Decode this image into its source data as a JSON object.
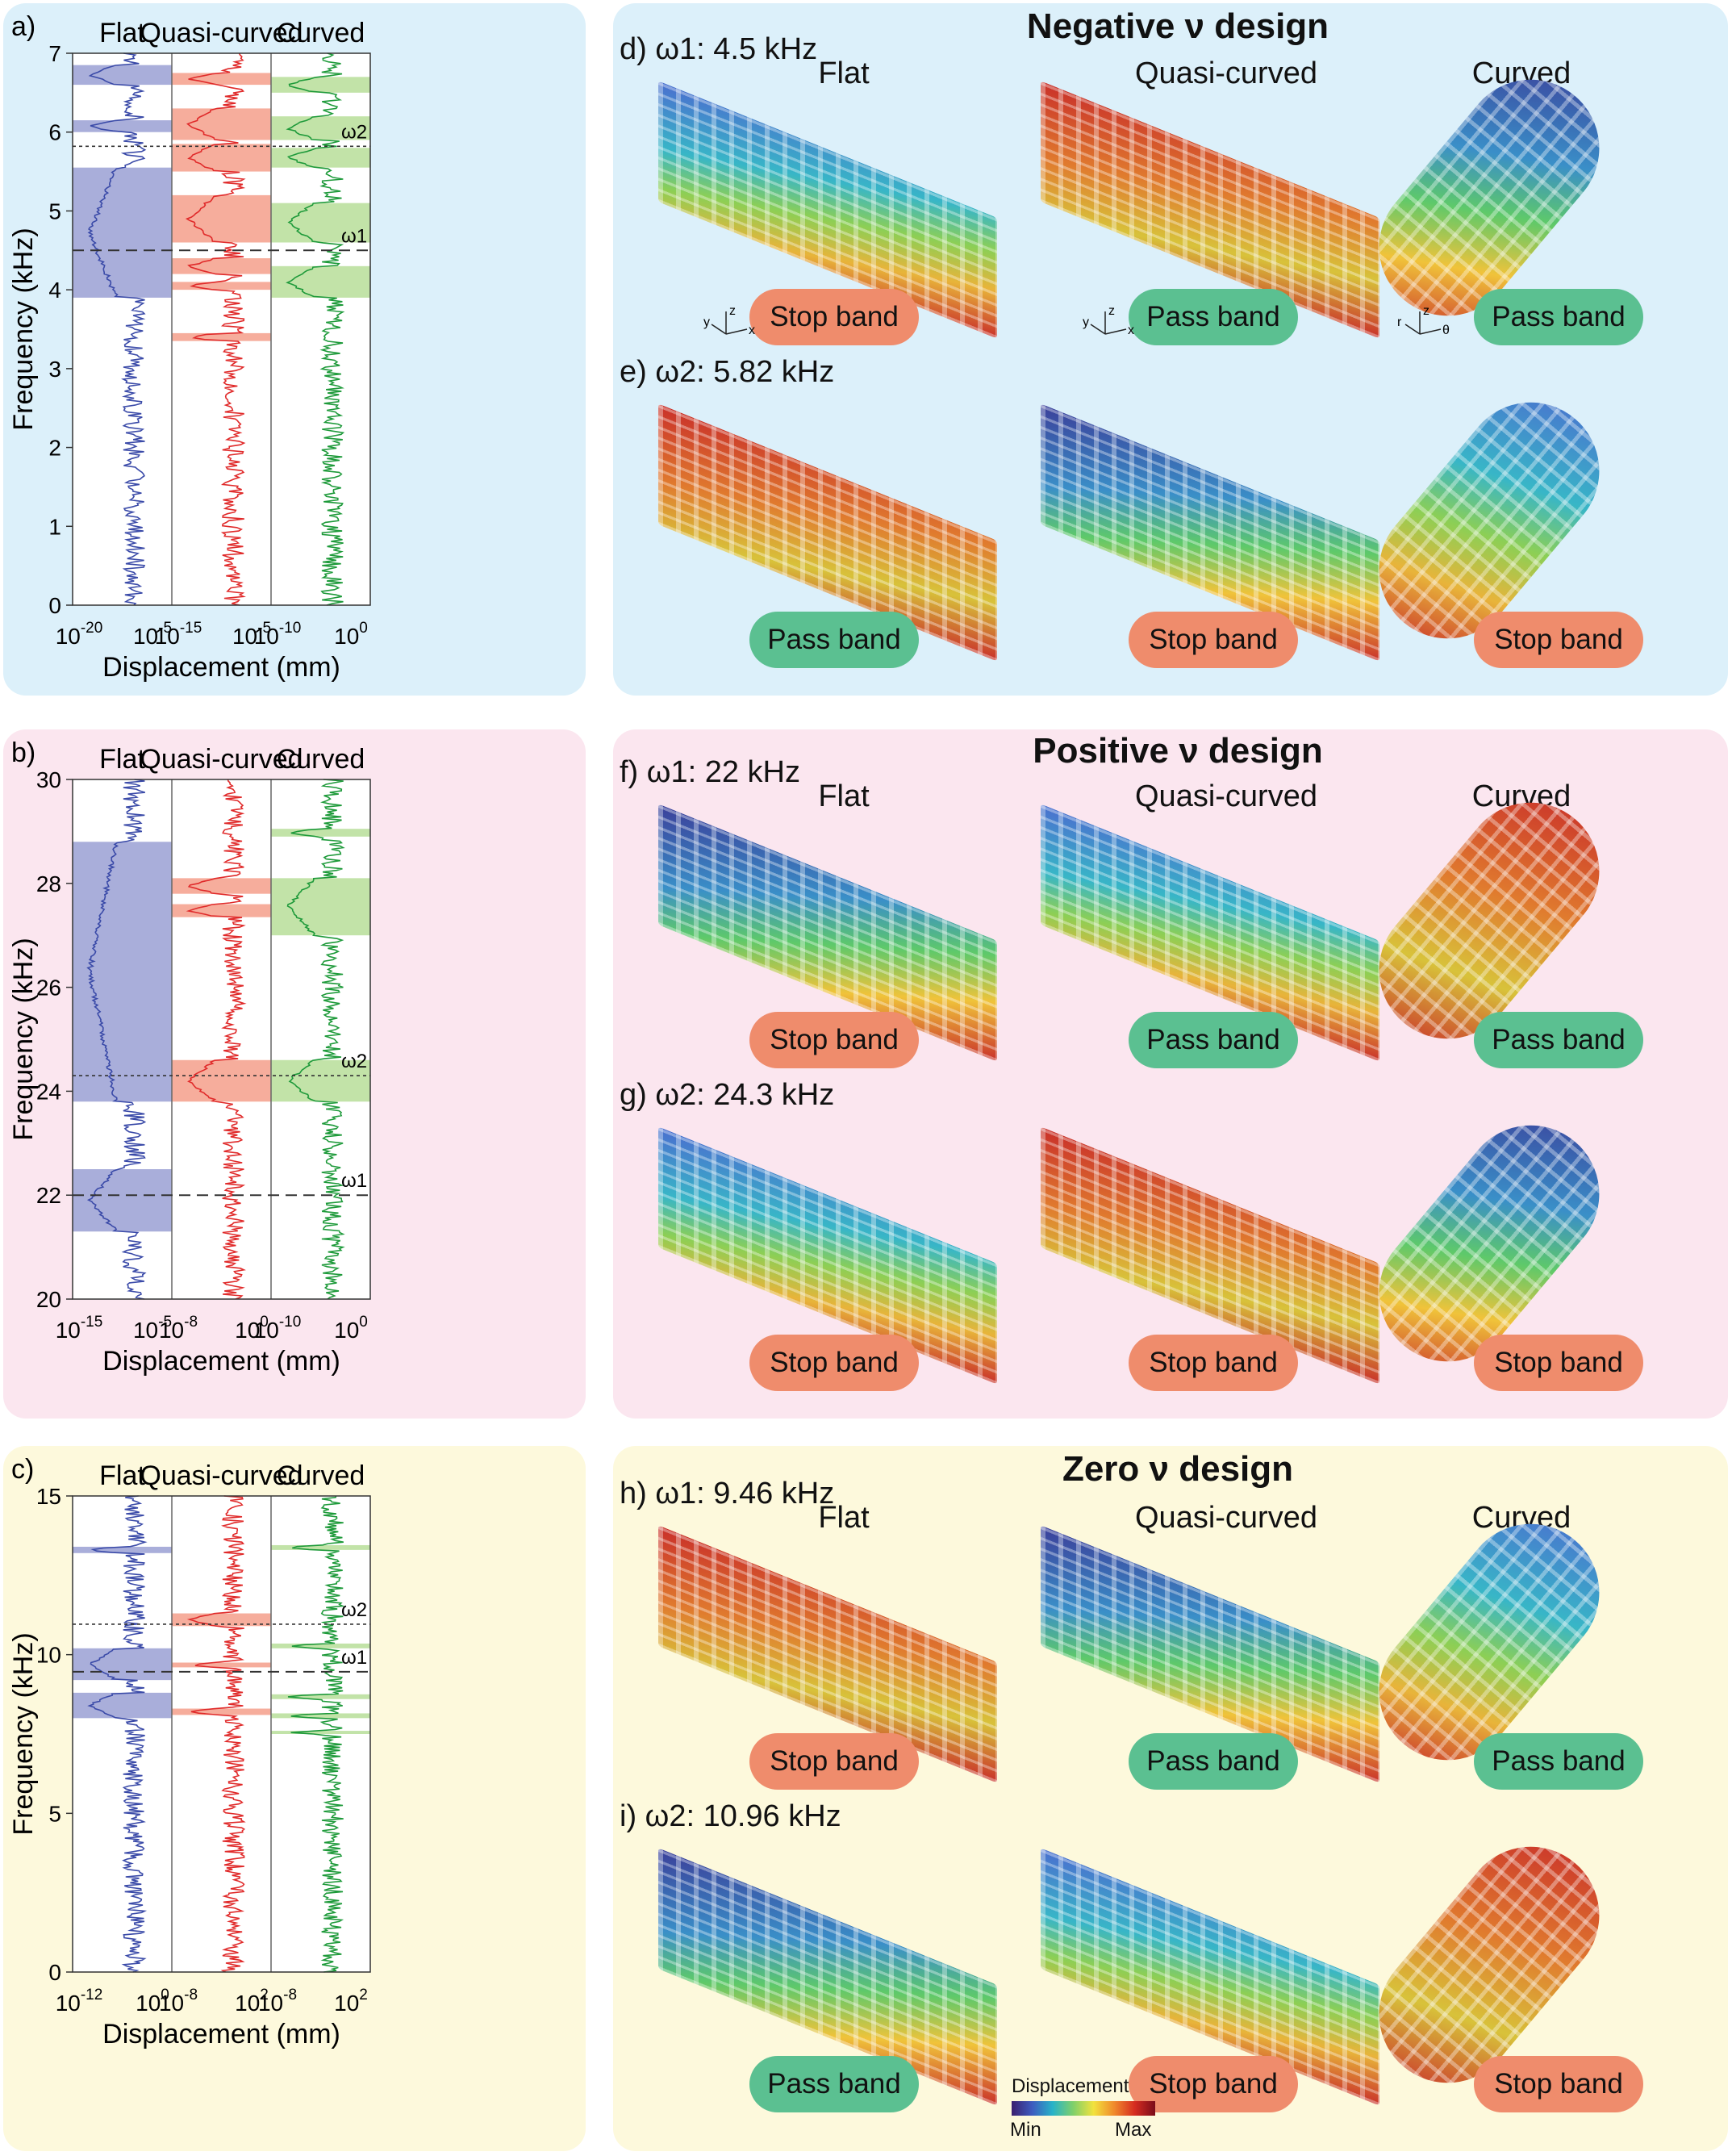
{
  "colors": {
    "flat": "#3a4aa8",
    "quasi": "#e02a2a",
    "curved": "#1e9a3a",
    "flat_band": "#a9aeda",
    "quasi_band": "#f6ad9c",
    "curved_band": "#c2e3a8",
    "stop_pill": "#ef8c6c",
    "pass_pill": "#5bc091",
    "panel_blue": "#dcf0fa",
    "panel_pink": "#fbe6ef",
    "panel_yellow": "#fdf9dc"
  },
  "designs": {
    "negative": "Negative ν design",
    "positive": "Positive ν design",
    "zero": "Zero ν design"
  },
  "columns": {
    "flat": "Flat",
    "quasi": "Quasi-curved",
    "curved": "Curved"
  },
  "chart_data": [
    {
      "panel": "a)",
      "type": "line",
      "ylabel": "Frequency (kHz)",
      "xlabel": "Displacement (mm)",
      "ylim": [
        0,
        7
      ],
      "yticks": [
        "0",
        "1",
        "2",
        "3",
        "4",
        "5",
        "6",
        "7"
      ],
      "omega_labels": [
        "ω2",
        "ω1"
      ],
      "omega_values": [
        5.82,
        4.5
      ],
      "columns": [
        {
          "name": "Flat",
          "xticks": [
            {
              "b": "10",
              "e": "-20"
            },
            {
              "b": "10",
              "e": "-5"
            }
          ],
          "bands": [
            [
              6.6,
              6.85
            ],
            [
              6.0,
              6.15
            ],
            [
              3.9,
              5.55
            ]
          ]
        },
        {
          "name": "Quasi-curved",
          "xticks": [
            {
              "b": "10",
              "e": "-15"
            },
            {
              "b": "10",
              "e": "-5"
            }
          ],
          "bands": [
            [
              6.6,
              6.75
            ],
            [
              5.9,
              6.3
            ],
            [
              5.5,
              5.85
            ],
            [
              4.6,
              5.2
            ],
            [
              4.2,
              4.4
            ],
            [
              4.0,
              4.1
            ],
            [
              3.35,
              3.45
            ]
          ]
        },
        {
          "name": "Curved",
          "xticks": [
            {
              "b": "10",
              "e": "-10"
            },
            {
              "b": "10",
              "e": "0"
            }
          ],
          "bands": [
            [
              6.5,
              6.7
            ],
            [
              5.9,
              6.2
            ],
            [
              5.55,
              5.8
            ],
            [
              4.6,
              5.1
            ],
            [
              3.9,
              4.3
            ]
          ]
        }
      ]
    },
    {
      "panel": "b)",
      "type": "line",
      "ylabel": "Frequency (kHz)",
      "xlabel": "Displacement (mm)",
      "ylim": [
        20,
        30
      ],
      "yticks": [
        "20",
        "22",
        "24",
        "26",
        "28",
        "30"
      ],
      "omega_labels": [
        "ω2",
        "ω1"
      ],
      "omega_values": [
        24.3,
        22
      ],
      "columns": [
        {
          "name": "Flat",
          "xticks": [
            {
              "b": "10",
              "e": "-15"
            },
            {
              "b": "10",
              "e": "-5"
            }
          ],
          "bands": [
            [
              23.8,
              28.8
            ],
            [
              21.3,
              22.5
            ]
          ]
        },
        {
          "name": "Quasi-curved",
          "xticks": [
            {
              "b": "10",
              "e": "-8"
            },
            {
              "b": "10",
              "e": "0"
            }
          ],
          "bands": [
            [
              27.8,
              28.1
            ],
            [
              27.35,
              27.6
            ],
            [
              23.8,
              24.6
            ]
          ]
        },
        {
          "name": "Curved",
          "xticks": [
            {
              "b": "10",
              "e": "-10"
            },
            {
              "b": "10",
              "e": "0"
            }
          ],
          "bands": [
            [
              28.9,
              29.05
            ],
            [
              27,
              28.1
            ],
            [
              23.8,
              24.6
            ]
          ]
        }
      ]
    },
    {
      "panel": "c)",
      "type": "line",
      "ylabel": "Frequency (kHz)",
      "xlabel": "Displacement (mm)",
      "ylim": [
        0,
        15
      ],
      "yticks": [
        "0",
        "5",
        "10",
        "15"
      ],
      "omega_labels": [
        "ω2",
        "ω1"
      ],
      "omega_values": [
        10.96,
        9.46
      ],
      "columns": [
        {
          "name": "Flat",
          "xticks": [
            {
              "b": "10",
              "e": "-12"
            },
            {
              "b": "10",
              "e": "0"
            }
          ],
          "bands": [
            [
              13.2,
              13.4
            ],
            [
              9.2,
              10.2
            ],
            [
              8.0,
              8.8
            ]
          ]
        },
        {
          "name": "Quasi-curved",
          "xticks": [
            {
              "b": "10",
              "e": "-8"
            },
            {
              "b": "10",
              "e": "2"
            }
          ],
          "bands": [
            [
              10.9,
              11.3
            ],
            [
              9.6,
              9.75
            ],
            [
              8.1,
              8.3
            ]
          ]
        },
        {
          "name": "Curved",
          "xticks": [
            {
              "b": "10",
              "e": "-8"
            },
            {
              "b": "10",
              "e": "2"
            }
          ],
          "bands": [
            [
              13.3,
              13.45
            ],
            [
              10.2,
              10.35
            ],
            [
              8.6,
              8.75
            ],
            [
              8.0,
              8.15
            ],
            [
              7.5,
              7.6
            ]
          ]
        }
      ]
    }
  ],
  "mode_panels": [
    {
      "label": "d)",
      "freq": "ω1: 4.5 kHz",
      "results": [
        "Stop band",
        "Pass band",
        "Pass band"
      ]
    },
    {
      "label": "e)",
      "freq": "ω2: 5.82 kHz",
      "results": [
        "Pass band",
        "Stop band",
        "Stop band"
      ]
    },
    {
      "label": "f)",
      "freq": "ω1: 22 kHz",
      "results": [
        "Stop band",
        "Pass band",
        "Pass band"
      ]
    },
    {
      "label": "g)",
      "freq": "ω2: 24.3 kHz",
      "results": [
        "Stop band",
        "Stop band",
        "Stop band"
      ]
    },
    {
      "label": "h)",
      "freq": "ω1: 9.46 kHz",
      "results": [
        "Stop band",
        "Pass band",
        "Pass band"
      ]
    },
    {
      "label": "i)",
      "freq": "ω2: 10.96 kHz",
      "results": [
        "Pass band",
        "Stop band",
        "Stop band"
      ]
    }
  ],
  "axis_indicators": {
    "flat": [
      "y",
      "z",
      "x"
    ],
    "quasi": [
      "y",
      "z",
      "x"
    ],
    "curved": [
      "r",
      "z",
      "θ"
    ]
  },
  "legend": {
    "title": "Displacement",
    "min": "Min",
    "max": "Max"
  }
}
